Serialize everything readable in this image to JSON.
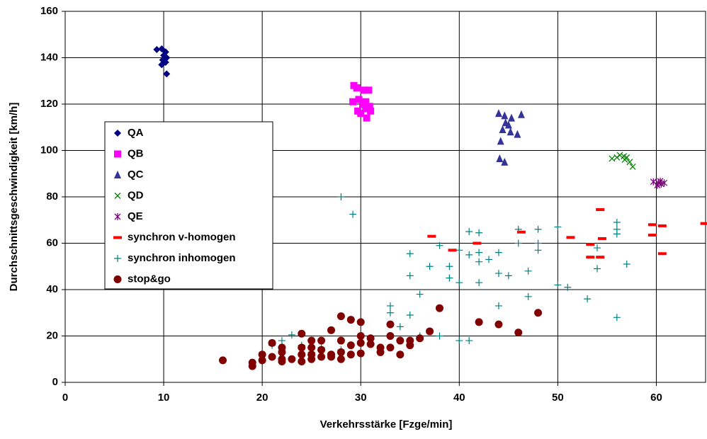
{
  "chart_data": {
    "type": "scatter",
    "x_label": "Verkehrsstärke [Fzge/min]",
    "y_label": "Durchschnittsgeschwindigkeit [km/h]",
    "xlim": [
      0,
      65
    ],
    "ylim": [
      0,
      160
    ],
    "xticks": [
      0,
      10,
      20,
      30,
      40,
      50,
      60
    ],
    "yticks": [
      0,
      20,
      40,
      60,
      80,
      100,
      120,
      140,
      160
    ],
    "grid": true,
    "series": [
      {
        "name": "QA",
        "color": "#000080",
        "marker": "diamond",
        "x": [
          9.3,
          9.8,
          10.2,
          10,
          10.3,
          9.9,
          10.2,
          9.8,
          10.3
        ],
        "values": [
          143.5,
          143.8,
          142.5,
          141,
          140,
          139,
          138,
          137,
          133
        ]
      },
      {
        "name": "QB",
        "color": "#ff00ff",
        "marker": "square",
        "x": [
          29.3,
          29.6,
          30.3,
          30.8,
          29.2,
          29.8,
          30.5,
          30.2,
          30.9,
          29.7,
          30.5,
          31,
          30.6,
          30
        ],
        "values": [
          128,
          127,
          126,
          126,
          121,
          122,
          121,
          120,
          119,
          117,
          118,
          117,
          114,
          116
        ]
      },
      {
        "name": "QC",
        "color": "#333399",
        "marker": "triangle",
        "x": [
          44,
          44.6,
          45.3,
          46.3,
          44.7,
          45,
          44.4,
          45.2,
          45.9,
          44.2,
          44.1,
          44.6
        ],
        "values": [
          116,
          115,
          114,
          115.5,
          112,
          111,
          109,
          108,
          107,
          104,
          96.5,
          95
        ]
      },
      {
        "name": "QD",
        "color": "#008000",
        "marker": "cross",
        "x": [
          55.5,
          56,
          56.3,
          56.7,
          57,
          56.8,
          57.3,
          57.6
        ],
        "values": [
          96.5,
          97,
          98,
          97.5,
          97,
          96,
          95,
          93
        ]
      },
      {
        "name": "QE",
        "color": "#800080",
        "marker": "star",
        "x": [
          59.7,
          60.2,
          60.5,
          60.8,
          60.1,
          60.4
        ],
        "values": [
          86.5,
          86,
          85.5,
          86,
          85,
          86.8
        ]
      },
      {
        "name": "synchron v-homogen",
        "color": "#ff0000",
        "marker": "dash",
        "x": [
          37.2,
          39.3,
          41.8,
          46.3,
          51.3,
          53.3,
          53.3,
          54.3,
          54.5,
          54.3,
          59.6,
          59.6,
          60.6,
          60.6,
          64.9
        ],
        "values": [
          63,
          57,
          60,
          64.8,
          62.5,
          59.5,
          54,
          54,
          62,
          74.5,
          68,
          63.5,
          67.5,
          55.5,
          68.5
        ]
      },
      {
        "name": "synchron inhomogen",
        "color": "#008080",
        "marker": "plus",
        "x": [
          28,
          29.2,
          21,
          22,
          23,
          24,
          25,
          26,
          27,
          28,
          33,
          33,
          34,
          35,
          35,
          35,
          36,
          37,
          38,
          38,
          39,
          39,
          40,
          40,
          40,
          41,
          41,
          41,
          42,
          42,
          42,
          42,
          43,
          44,
          44,
          44,
          45,
          46,
          46,
          47,
          47,
          48,
          48,
          48,
          50,
          50,
          51,
          53,
          54,
          54,
          56,
          56,
          56,
          56,
          57,
          37,
          36
        ],
        "values": [
          80,
          72.5,
          16,
          18,
          20.5,
          16,
          13,
          15,
          12,
          14,
          33,
          30,
          24,
          29,
          46,
          55.5,
          38,
          50,
          59,
          20,
          50,
          45,
          57,
          43,
          18,
          65,
          55,
          18,
          64.5,
          56,
          52,
          43,
          53,
          47,
          33,
          56,
          46,
          66,
          60,
          48,
          37,
          66,
          57,
          60,
          67,
          42,
          41,
          36,
          58,
          49,
          69,
          66,
          64,
          28,
          51,
          22,
          20
        ]
      },
      {
        "name": "stop&go",
        "color": "#800000",
        "marker": "circle",
        "x": [
          16,
          19,
          19,
          20,
          20,
          21,
          21,
          22,
          22,
          22,
          22,
          23,
          24,
          24,
          24,
          24,
          25,
          25,
          25,
          25,
          26,
          26,
          26,
          27,
          27,
          27,
          28,
          28,
          28,
          28,
          29,
          29,
          29,
          30,
          30,
          30,
          30,
          31,
          31,
          32,
          32,
          33,
          33,
          33,
          34,
          34,
          35,
          35,
          36,
          37,
          38,
          42,
          44,
          46,
          48
        ],
        "values": [
          9.5,
          8.5,
          7,
          12,
          9.5,
          17,
          11,
          15,
          13,
          10,
          9,
          10,
          21,
          15,
          12,
          9,
          18,
          15,
          12,
          10,
          18,
          14,
          11,
          22.5,
          12,
          11,
          28.5,
          18,
          13,
          10,
          27,
          16,
          12,
          26,
          20,
          17,
          12.5,
          19,
          16.5,
          15,
          13,
          25,
          20,
          15,
          18,
          12,
          18,
          16,
          19,
          22,
          32,
          26,
          25,
          21.5,
          30
        ]
      }
    ]
  }
}
